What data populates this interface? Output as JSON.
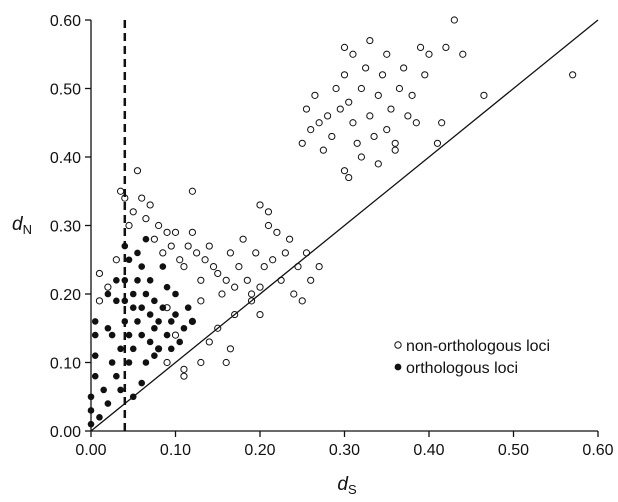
{
  "chart_data": {
    "type": "scatter",
    "xlabel": "d",
    "xlabel_sub": "S",
    "ylabel": "d",
    "ylabel_sub": "N",
    "xlim": [
      0,
      0.6
    ],
    "ylim": [
      0,
      0.6
    ],
    "x_ticks": [
      "0.00",
      "0.10",
      "0.20",
      "0.30",
      "0.40",
      "0.50",
      "0.60"
    ],
    "y_ticks": [
      "0.00",
      "0.10",
      "0.20",
      "0.30",
      "0.40",
      "0.50",
      "0.60"
    ],
    "grid": false,
    "legend_position": "lower-right",
    "reference_line": {
      "type": "y=x"
    },
    "vertical_dashed_line": {
      "x": 0.04
    },
    "series": [
      {
        "name": "non-orthologous loci",
        "marker": "open-circle",
        "color": "#111111",
        "points": [
          [
            0.01,
            0.23
          ],
          [
            0.01,
            0.19
          ],
          [
            0.02,
            0.21
          ],
          [
            0.03,
            0.25
          ],
          [
            0.035,
            0.35
          ],
          [
            0.04,
            0.34
          ],
          [
            0.045,
            0.3
          ],
          [
            0.05,
            0.32
          ],
          [
            0.055,
            0.38
          ],
          [
            0.06,
            0.34
          ],
          [
            0.065,
            0.31
          ],
          [
            0.07,
            0.33
          ],
          [
            0.075,
            0.28
          ],
          [
            0.08,
            0.3
          ],
          [
            0.085,
            0.26
          ],
          [
            0.09,
            0.29
          ],
          [
            0.095,
            0.27
          ],
          [
            0.1,
            0.29
          ],
          [
            0.105,
            0.25
          ],
          [
            0.11,
            0.24
          ],
          [
            0.115,
            0.27
          ],
          [
            0.12,
            0.29
          ],
          [
            0.12,
            0.35
          ],
          [
            0.125,
            0.26
          ],
          [
            0.13,
            0.22
          ],
          [
            0.135,
            0.25
          ],
          [
            0.14,
            0.27
          ],
          [
            0.145,
            0.24
          ],
          [
            0.15,
            0.23
          ],
          [
            0.155,
            0.2
          ],
          [
            0.16,
            0.22
          ],
          [
            0.165,
            0.26
          ],
          [
            0.17,
            0.21
          ],
          [
            0.175,
            0.24
          ],
          [
            0.18,
            0.28
          ],
          [
            0.185,
            0.22
          ],
          [
            0.19,
            0.2
          ],
          [
            0.195,
            0.26
          ],
          [
            0.2,
            0.21
          ],
          [
            0.205,
            0.24
          ],
          [
            0.21,
            0.3
          ],
          [
            0.215,
            0.25
          ],
          [
            0.22,
            0.29
          ],
          [
            0.225,
            0.22
          ],
          [
            0.23,
            0.26
          ],
          [
            0.235,
            0.28
          ],
          [
            0.24,
            0.2
          ],
          [
            0.245,
            0.24
          ],
          [
            0.25,
            0.19
          ],
          [
            0.255,
            0.26
          ],
          [
            0.26,
            0.22
          ],
          [
            0.27,
            0.24
          ],
          [
            0.2,
            0.33
          ],
          [
            0.21,
            0.32
          ],
          [
            0.16,
            0.1
          ],
          [
            0.165,
            0.12
          ],
          [
            0.2,
            0.17
          ],
          [
            0.13,
            0.1
          ],
          [
            0.11,
            0.09
          ],
          [
            0.11,
            0.08
          ],
          [
            0.09,
            0.1
          ],
          [
            0.08,
            0.12
          ],
          [
            0.14,
            0.13
          ],
          [
            0.15,
            0.15
          ],
          [
            0.17,
            0.17
          ],
          [
            0.19,
            0.19
          ],
          [
            0.12,
            0.16
          ],
          [
            0.1,
            0.14
          ],
          [
            0.09,
            0.18
          ],
          [
            0.13,
            0.19
          ],
          [
            0.25,
            0.42
          ],
          [
            0.255,
            0.47
          ],
          [
            0.26,
            0.44
          ],
          [
            0.265,
            0.49
          ],
          [
            0.27,
            0.45
          ],
          [
            0.275,
            0.41
          ],
          [
            0.28,
            0.46
          ],
          [
            0.285,
            0.43
          ],
          [
            0.29,
            0.5
          ],
          [
            0.295,
            0.47
          ],
          [
            0.3,
            0.52
          ],
          [
            0.3,
            0.56
          ],
          [
            0.305,
            0.48
          ],
          [
            0.31,
            0.55
          ],
          [
            0.31,
            0.45
          ],
          [
            0.315,
            0.42
          ],
          [
            0.32,
            0.5
          ],
          [
            0.325,
            0.53
          ],
          [
            0.33,
            0.57
          ],
          [
            0.33,
            0.46
          ],
          [
            0.335,
            0.43
          ],
          [
            0.34,
            0.49
          ],
          [
            0.345,
            0.52
          ],
          [
            0.35,
            0.44
          ],
          [
            0.35,
            0.55
          ],
          [
            0.355,
            0.47
          ],
          [
            0.36,
            0.42
          ],
          [
            0.365,
            0.5
          ],
          [
            0.37,
            0.53
          ],
          [
            0.375,
            0.46
          ],
          [
            0.38,
            0.49
          ],
          [
            0.385,
            0.45
          ],
          [
            0.39,
            0.56
          ],
          [
            0.395,
            0.52
          ],
          [
            0.4,
            0.55
          ],
          [
            0.41,
            0.42
          ],
          [
            0.415,
            0.45
          ],
          [
            0.42,
            0.56
          ],
          [
            0.43,
            0.6
          ],
          [
            0.44,
            0.55
          ],
          [
            0.465,
            0.49
          ],
          [
            0.57,
            0.52
          ],
          [
            0.3,
            0.38
          ],
          [
            0.305,
            0.37
          ],
          [
            0.32,
            0.4
          ],
          [
            0.34,
            0.39
          ],
          [
            0.36,
            0.41
          ]
        ]
      },
      {
        "name": "orthologous loci",
        "marker": "filled-circle",
        "color": "#111111",
        "points": [
          [
            0.0,
            0.01
          ],
          [
            0.0,
            0.03
          ],
          [
            0.0,
            0.05
          ],
          [
            0.005,
            0.08
          ],
          [
            0.005,
            0.11
          ],
          [
            0.005,
            0.14
          ],
          [
            0.005,
            0.16
          ],
          [
            0.01,
            0.02
          ],
          [
            0.015,
            0.06
          ],
          [
            0.02,
            0.04
          ],
          [
            0.025,
            0.1
          ],
          [
            0.025,
            0.14
          ],
          [
            0.03,
            0.19
          ],
          [
            0.03,
            0.22
          ],
          [
            0.035,
            0.06
          ],
          [
            0.035,
            0.12
          ],
          [
            0.04,
            0.16
          ],
          [
            0.04,
            0.19
          ],
          [
            0.04,
            0.22
          ],
          [
            0.045,
            0.25
          ],
          [
            0.045,
            0.14
          ],
          [
            0.05,
            0.12
          ],
          [
            0.05,
            0.18
          ],
          [
            0.05,
            0.2
          ],
          [
            0.055,
            0.16
          ],
          [
            0.055,
            0.22
          ],
          [
            0.06,
            0.14
          ],
          [
            0.06,
            0.18
          ],
          [
            0.06,
            0.24
          ],
          [
            0.065,
            0.1
          ],
          [
            0.065,
            0.2
          ],
          [
            0.07,
            0.13
          ],
          [
            0.07,
            0.17
          ],
          [
            0.07,
            0.22
          ],
          [
            0.075,
            0.15
          ],
          [
            0.075,
            0.19
          ],
          [
            0.08,
            0.12
          ],
          [
            0.08,
            0.16
          ],
          [
            0.085,
            0.18
          ],
          [
            0.09,
            0.14
          ],
          [
            0.09,
            0.21
          ],
          [
            0.095,
            0.16
          ],
          [
            0.1,
            0.17
          ],
          [
            0.105,
            0.13
          ],
          [
            0.11,
            0.15
          ],
          [
            0.115,
            0.18
          ],
          [
            0.12,
            0.16
          ],
          [
            0.05,
            0.05
          ],
          [
            0.06,
            0.07
          ],
          [
            0.03,
            0.08
          ],
          [
            0.02,
            0.15
          ],
          [
            0.045,
            0.1
          ],
          [
            0.055,
            0.26
          ],
          [
            0.065,
            0.28
          ],
          [
            0.04,
            0.27
          ],
          [
            0.1,
            0.2
          ],
          [
            0.085,
            0.24
          ],
          [
            0.075,
            0.11
          ],
          [
            0.095,
            0.12
          ],
          [
            0.02,
            0.2
          ]
        ]
      }
    ],
    "legend": [
      {
        "label": "non-orthologous loci",
        "marker": "open-circle"
      },
      {
        "label": "orthologous loci",
        "marker": "filled-circle"
      }
    ]
  }
}
